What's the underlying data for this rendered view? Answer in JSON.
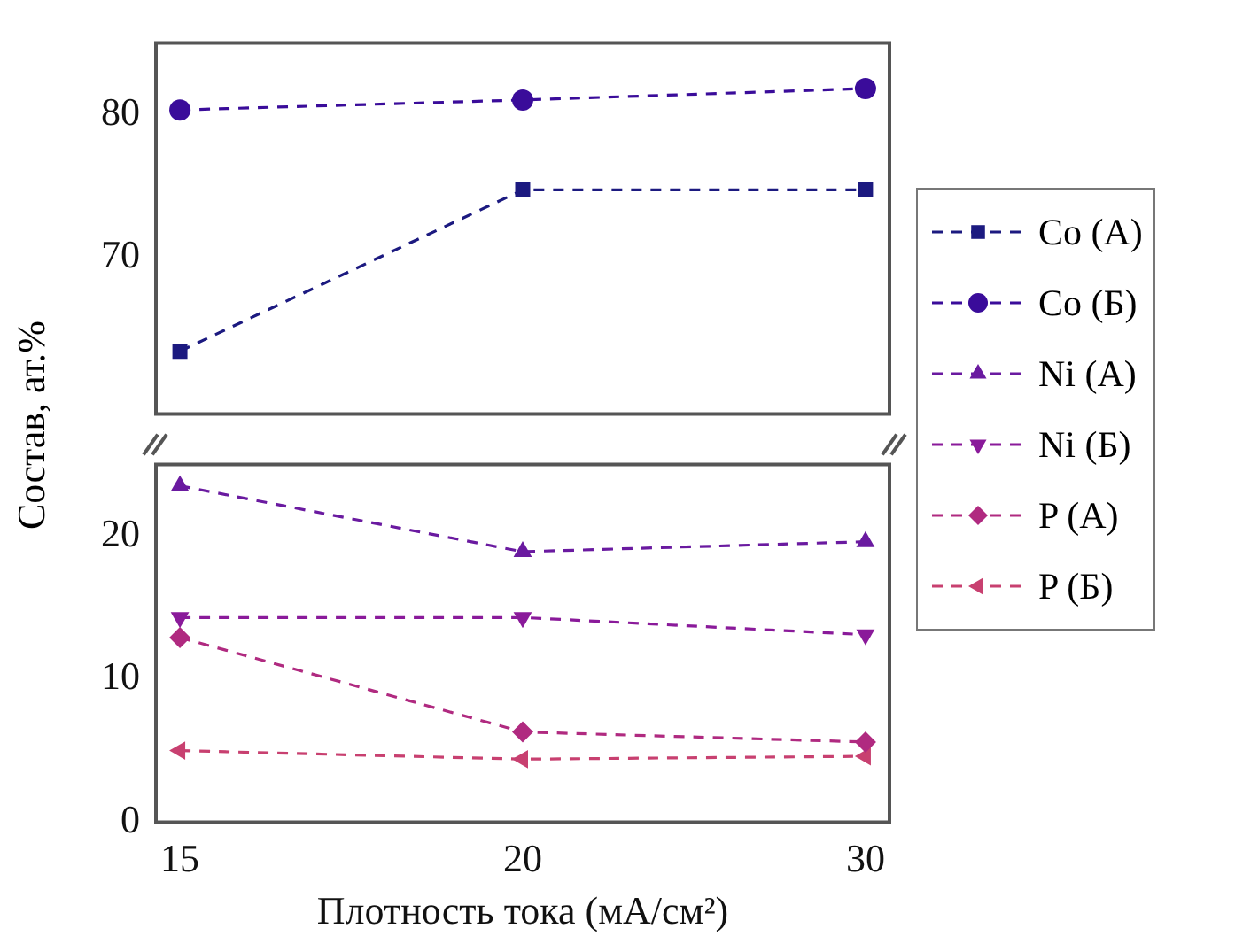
{
  "chart_data": [
    {
      "type": "line",
      "ylabel": "Состав, ат.%",
      "categories": [
        "15",
        "20",
        "30"
      ],
      "ylim": [
        59,
        85
      ],
      "yticks": [
        70,
        80
      ],
      "tick_labels": "y",
      "grid": false,
      "legend": "right",
      "line_style": "dashed",
      "series": [
        {
          "name": "Co (А)",
          "color": "#1c1a80",
          "marker": "square",
          "values": [
            63.4,
            74.7,
            74.7
          ]
        },
        {
          "name": "Co (Б)",
          "color": "#3a0c9a",
          "marker": "circle",
          "values": [
            80.3,
            81.0,
            81.8
          ]
        }
      ]
    },
    {
      "type": "line",
      "xlabel": "Плотность тока (мА/см²)",
      "categories": [
        "15",
        "20",
        "30"
      ],
      "ylim": [
        0,
        25
      ],
      "yticks": [
        0,
        10,
        20
      ],
      "grid": false,
      "legend": "right",
      "line_style": "dashed",
      "series": [
        {
          "name": "Ni (А)",
          "color": "#6a1aa0",
          "marker": "triangle",
          "values": [
            23.5,
            18.9,
            19.6
          ]
        },
        {
          "name": "Ni (Б)",
          "color": "#8a1a9a",
          "marker": "triangle-down",
          "values": [
            14.3,
            14.3,
            13.1
          ]
        },
        {
          "name": "P (А)",
          "color": "#b02a80",
          "marker": "diamond",
          "values": [
            12.9,
            6.3,
            5.6
          ]
        },
        {
          "name": "P (Б)",
          "color": "#c84070",
          "marker": "triangle-left",
          "values": [
            5.0,
            4.4,
            4.6
          ]
        }
      ]
    }
  ]
}
